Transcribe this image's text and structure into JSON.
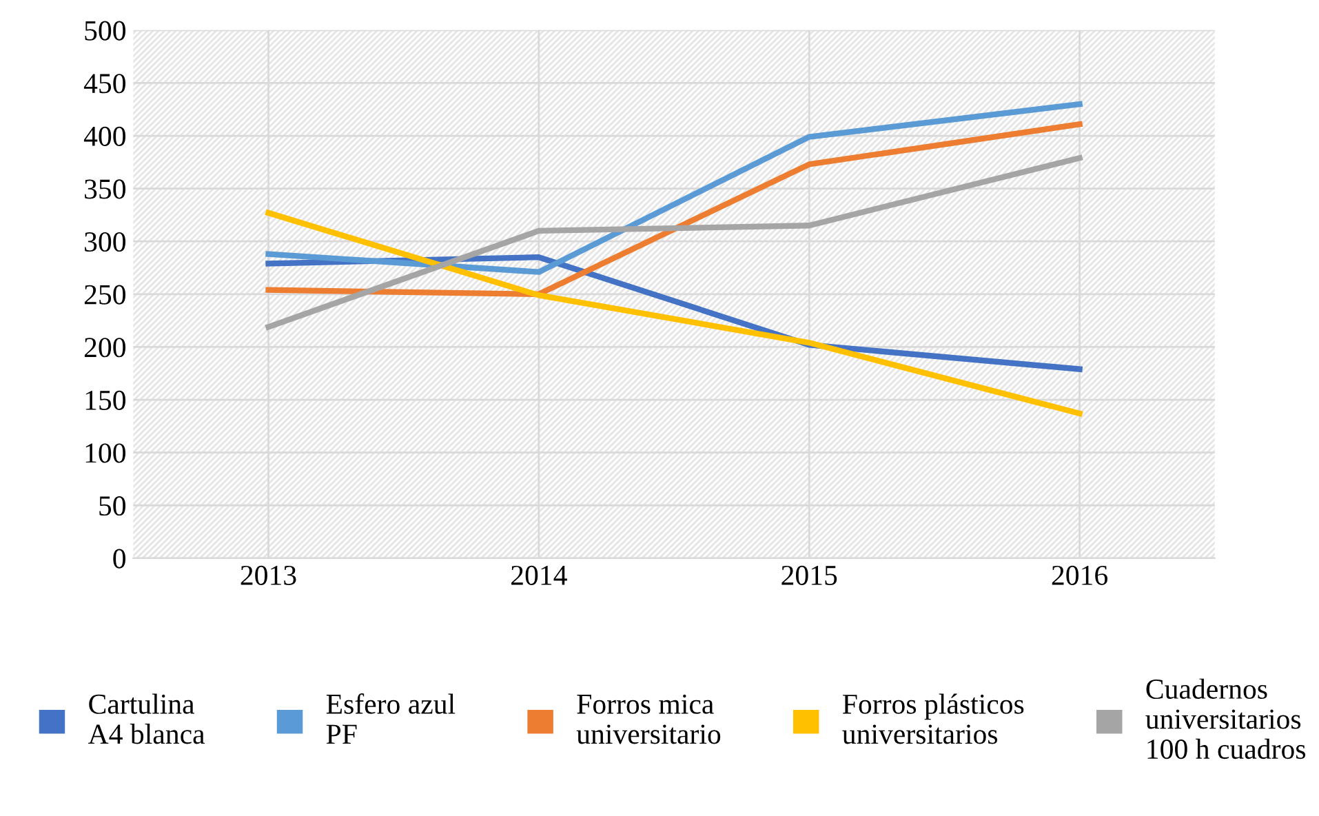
{
  "chart_data": {
    "type": "line",
    "categories": [
      "2013",
      "2014",
      "2015",
      "2016"
    ],
    "series": [
      {
        "name": "Cartulina\nA4 blanca",
        "color": "#4472c4",
        "values": [
          279,
          285,
          202,
          179
        ]
      },
      {
        "name": "Esfero azul\nPF",
        "color": "#5b9bd5",
        "values": [
          288,
          271,
          399,
          430
        ]
      },
      {
        "name": "Forros mica\nuniversitario",
        "color": "#ed7d31",
        "values": [
          254,
          250,
          373,
          411
        ]
      },
      {
        "name": "Forros plásticos\nuniversitarios",
        "color": "#ffc000",
        "values": [
          327,
          249,
          204,
          137
        ]
      },
      {
        "name": "Cuadernos\nuniversitarios\n100 h cuadros",
        "color": "#a5a5a5",
        "values": [
          219,
          310,
          315,
          379
        ]
      }
    ],
    "ylim": [
      0,
      500
    ],
    "yticks": [
      0,
      50,
      100,
      150,
      200,
      250,
      300,
      350,
      400,
      450,
      500
    ],
    "grid": true,
    "legend": "bottom",
    "marker": "none",
    "line_style": "solid"
  }
}
